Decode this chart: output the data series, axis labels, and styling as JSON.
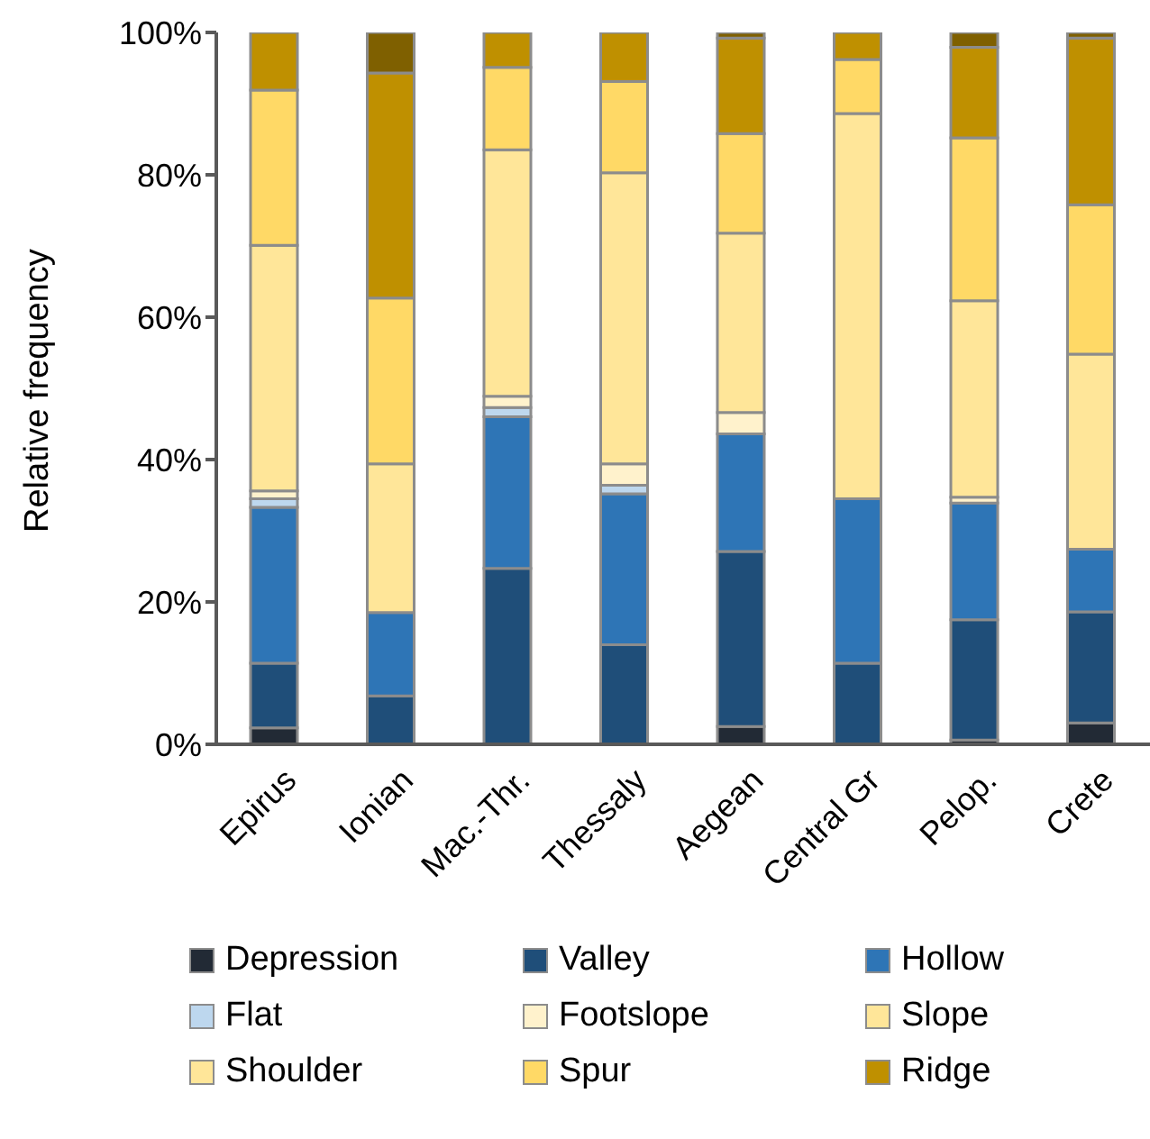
{
  "chart_data": {
    "type": "bar",
    "stacked": true,
    "ylabel": "Relative frequency",
    "categories": [
      "Epirus",
      "Ionian",
      "Mac.-Thr.",
      "Thessaly",
      "Aegean",
      "Central Gr",
      "Pelop.",
      "Crete"
    ],
    "series": [
      {
        "name": "Depression",
        "color": "#222a35",
        "values": [
          2.3,
          0,
          0,
          0,
          2.5,
          0,
          0.6,
          3.0
        ]
      },
      {
        "name": "Valley",
        "color": "#1f4e79",
        "values": [
          9.1,
          6.8,
          24.7,
          14.0,
          24.6,
          11.4,
          16.9,
          15.6
        ]
      },
      {
        "name": "Hollow",
        "color": "#2e75b6",
        "values": [
          21.9,
          11.7,
          21.3,
          21.2,
          16.5,
          23.1,
          16.4,
          8.8
        ]
      },
      {
        "name": "Flat",
        "color": "#bdd7ee",
        "values": [
          1.2,
          0,
          1.3,
          1.2,
          0,
          0,
          0,
          0
        ]
      },
      {
        "name": "Footslope",
        "color": "#fff2cc",
        "values": [
          1.1,
          0,
          1.6,
          3.0,
          3.0,
          0,
          0.8,
          0
        ]
      },
      {
        "name": "Slope",
        "color": "#ffe699",
        "values": [
          34.5,
          20.9,
          34.6,
          40.9,
          25.2,
          54.1,
          27.6,
          27.4
        ]
      },
      {
        "name": "Shoulder",
        "color": "#ffe699",
        "values": [
          0,
          0,
          0,
          0,
          0,
          0,
          0,
          0
        ]
      },
      {
        "name": "Spur",
        "color": "#ffd966",
        "values": [
          21.8,
          23.3,
          11.6,
          12.8,
          14.0,
          7.6,
          22.9,
          21.0
        ]
      },
      {
        "name": "Ridge",
        "color": "#bf9000",
        "values": [
          8.1,
          31.6,
          4.9,
          6.9,
          13.4,
          3.8,
          12.7,
          23.4
        ]
      },
      {
        "color": "#7f6000",
        "values": [
          0,
          5.7,
          0,
          0,
          0.8,
          0,
          2.1,
          0.8
        ]
      }
    ],
    "ylim": [
      0,
      100
    ],
    "yticks": [
      {
        "value": 0,
        "label": "0%"
      },
      {
        "value": 20,
        "label": "20%"
      },
      {
        "value": 40,
        "label": "40%"
      },
      {
        "value": 60,
        "label": "60%"
      },
      {
        "value": 80,
        "label": "80%"
      },
      {
        "value": 100,
        "label": "100%"
      }
    ],
    "grid": false,
    "legend": "bottom"
  }
}
